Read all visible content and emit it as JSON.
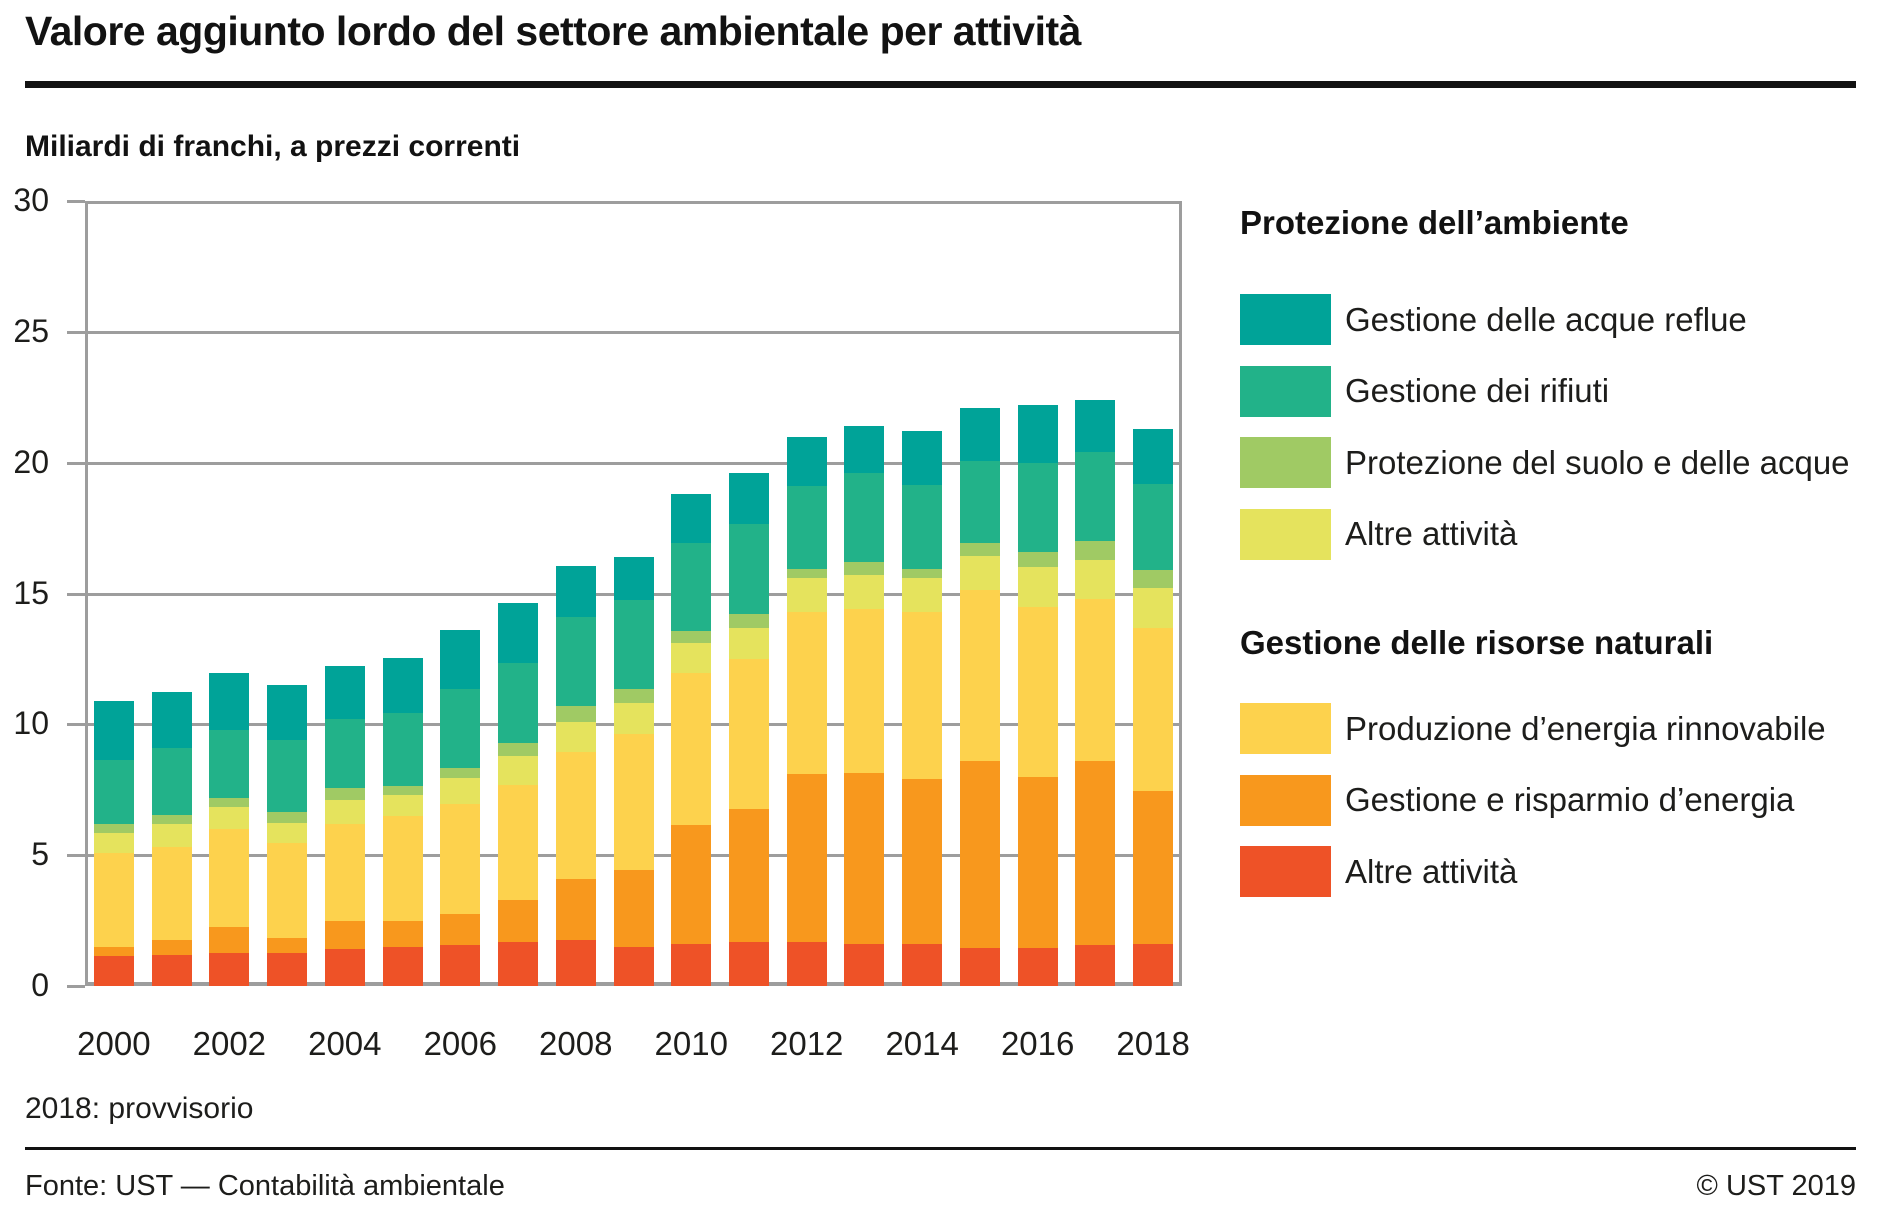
{
  "header": {
    "title": "Valore aggiunto lordo del settore ambientale per attività",
    "subtitle": "Miliardi di franchi, a prezzi correnti"
  },
  "footnote": "2018: provvisorio",
  "footer": {
    "source": "Fonte: UST — Contabilità ambientale",
    "copyright": "© UST 2019"
  },
  "colors": {
    "grid": "#9d9d9d",
    "text": "#1d1d1b",
    "rule": "#121212"
  },
  "chart_data": {
    "type": "bar",
    "stacked": true,
    "title": "Valore aggiunto lordo del settore ambientale per attività",
    "subtitle": "Miliardi di franchi, a prezzi correnti",
    "unit": "Miliardi di franchi, a prezzi correnti",
    "ylim": [
      0,
      30
    ],
    "y_ticks": [
      0,
      5,
      10,
      15,
      20,
      25,
      30
    ],
    "grid": true,
    "categories": [
      2000,
      2001,
      2002,
      2003,
      2004,
      2005,
      2006,
      2007,
      2008,
      2009,
      2010,
      2011,
      2012,
      2013,
      2014,
      2015,
      2016,
      2017,
      2018
    ],
    "x_tick_labels": [
      "2000",
      "2002",
      "2004",
      "2006",
      "2008",
      "2010",
      "2012",
      "2014",
      "2016",
      "2018"
    ],
    "series": [
      {
        "key": "altre-risorse",
        "name": "Altre attività",
        "group": "Gestione delle risorse naturali",
        "color": "#ee5227",
        "values": [
          1.15,
          1.2,
          1.25,
          1.25,
          1.4,
          1.5,
          1.55,
          1.7,
          1.75,
          1.5,
          1.6,
          1.7,
          1.7,
          1.6,
          1.6,
          1.45,
          1.45,
          1.55,
          1.6
        ]
      },
      {
        "key": "risparmio",
        "name": "Gestione e risparmio d’energia",
        "group": "Gestione delle risorse naturali",
        "color": "#f8981d",
        "values": [
          0.35,
          0.55,
          1.0,
          0.6,
          1.1,
          1.0,
          1.2,
          1.6,
          2.35,
          2.95,
          4.55,
          5.05,
          6.4,
          6.55,
          6.3,
          7.15,
          6.55,
          7.05,
          5.85
        ]
      },
      {
        "key": "rinnovabile",
        "name": "Produzione d’energia rinnovabile",
        "group": "Gestione delle risorse naturali",
        "color": "#fdd24d",
        "values": [
          3.6,
          3.55,
          3.75,
          3.6,
          3.7,
          4.0,
          4.2,
          4.4,
          4.85,
          5.2,
          5.8,
          5.75,
          6.2,
          6.25,
          6.4,
          6.55,
          6.5,
          6.2,
          6.25
        ]
      },
      {
        "key": "altre-ambiente",
        "name": "Altre attività",
        "group": "Protezione dell’ambiente",
        "color": "#e5e35d",
        "values": [
          0.75,
          0.9,
          0.85,
          0.8,
          0.9,
          0.8,
          1.0,
          1.1,
          1.15,
          1.15,
          1.15,
          1.2,
          1.3,
          1.3,
          1.3,
          1.3,
          1.5,
          1.5,
          1.5
        ]
      },
      {
        "key": "suolo",
        "name": "Protezione del suolo e delle acque",
        "group": "Protezione dell’ambiente",
        "color": "#a0ca64",
        "values": [
          0.35,
          0.35,
          0.35,
          0.4,
          0.45,
          0.35,
          0.4,
          0.5,
          0.6,
          0.55,
          0.45,
          0.5,
          0.35,
          0.5,
          0.35,
          0.5,
          0.6,
          0.7,
          0.7
        ]
      },
      {
        "key": "rifiuti",
        "name": "Gestione dei rifiuti",
        "group": "Protezione dell’ambiente",
        "color": "#22b289",
        "values": [
          2.45,
          2.55,
          2.6,
          2.75,
          2.65,
          2.8,
          3.0,
          3.05,
          3.4,
          3.4,
          3.4,
          3.45,
          3.15,
          3.4,
          3.2,
          3.1,
          3.4,
          3.4,
          3.3
        ]
      },
      {
        "key": "reflue",
        "name": "Gestione delle acque reflue",
        "group": "Protezione dell’ambiente",
        "color": "#00a398",
        "values": [
          2.25,
          2.15,
          2.15,
          2.1,
          2.05,
          2.1,
          2.25,
          2.3,
          1.95,
          1.65,
          1.85,
          1.95,
          1.9,
          1.8,
          2.05,
          2.05,
          2.2,
          2.0,
          2.1
        ]
      }
    ],
    "totals": [
      10.9,
      11.25,
      11.95,
      11.5,
      12.25,
      12.55,
      13.6,
      14.65,
      16.05,
      16.4,
      18.8,
      19.6,
      21.0,
      21.4,
      21.2,
      22.1,
      22.2,
      22.4,
      21.3
    ],
    "legend_position": "right"
  },
  "legend": {
    "groups": [
      {
        "heading": "Protezione dell’ambiente",
        "items": [
          {
            "label": "Gestione delle acque reflue",
            "color": "#00a398"
          },
          {
            "label": "Gestione dei rifiuti",
            "color": "#22b289"
          },
          {
            "label": "Protezione del suolo e delle acque",
            "color": "#a0ca64"
          },
          {
            "label": "Altre attività",
            "color": "#e5e35d"
          }
        ]
      },
      {
        "heading": "Gestione delle risorse naturali",
        "items": [
          {
            "label": "Produzione d’energia rinnovabile",
            "color": "#fdd24d"
          },
          {
            "label": "Gestione e risparmio d’energia",
            "color": "#f8981d"
          },
          {
            "label": "Altre attività",
            "color": "#ee5227"
          }
        ]
      }
    ]
  }
}
